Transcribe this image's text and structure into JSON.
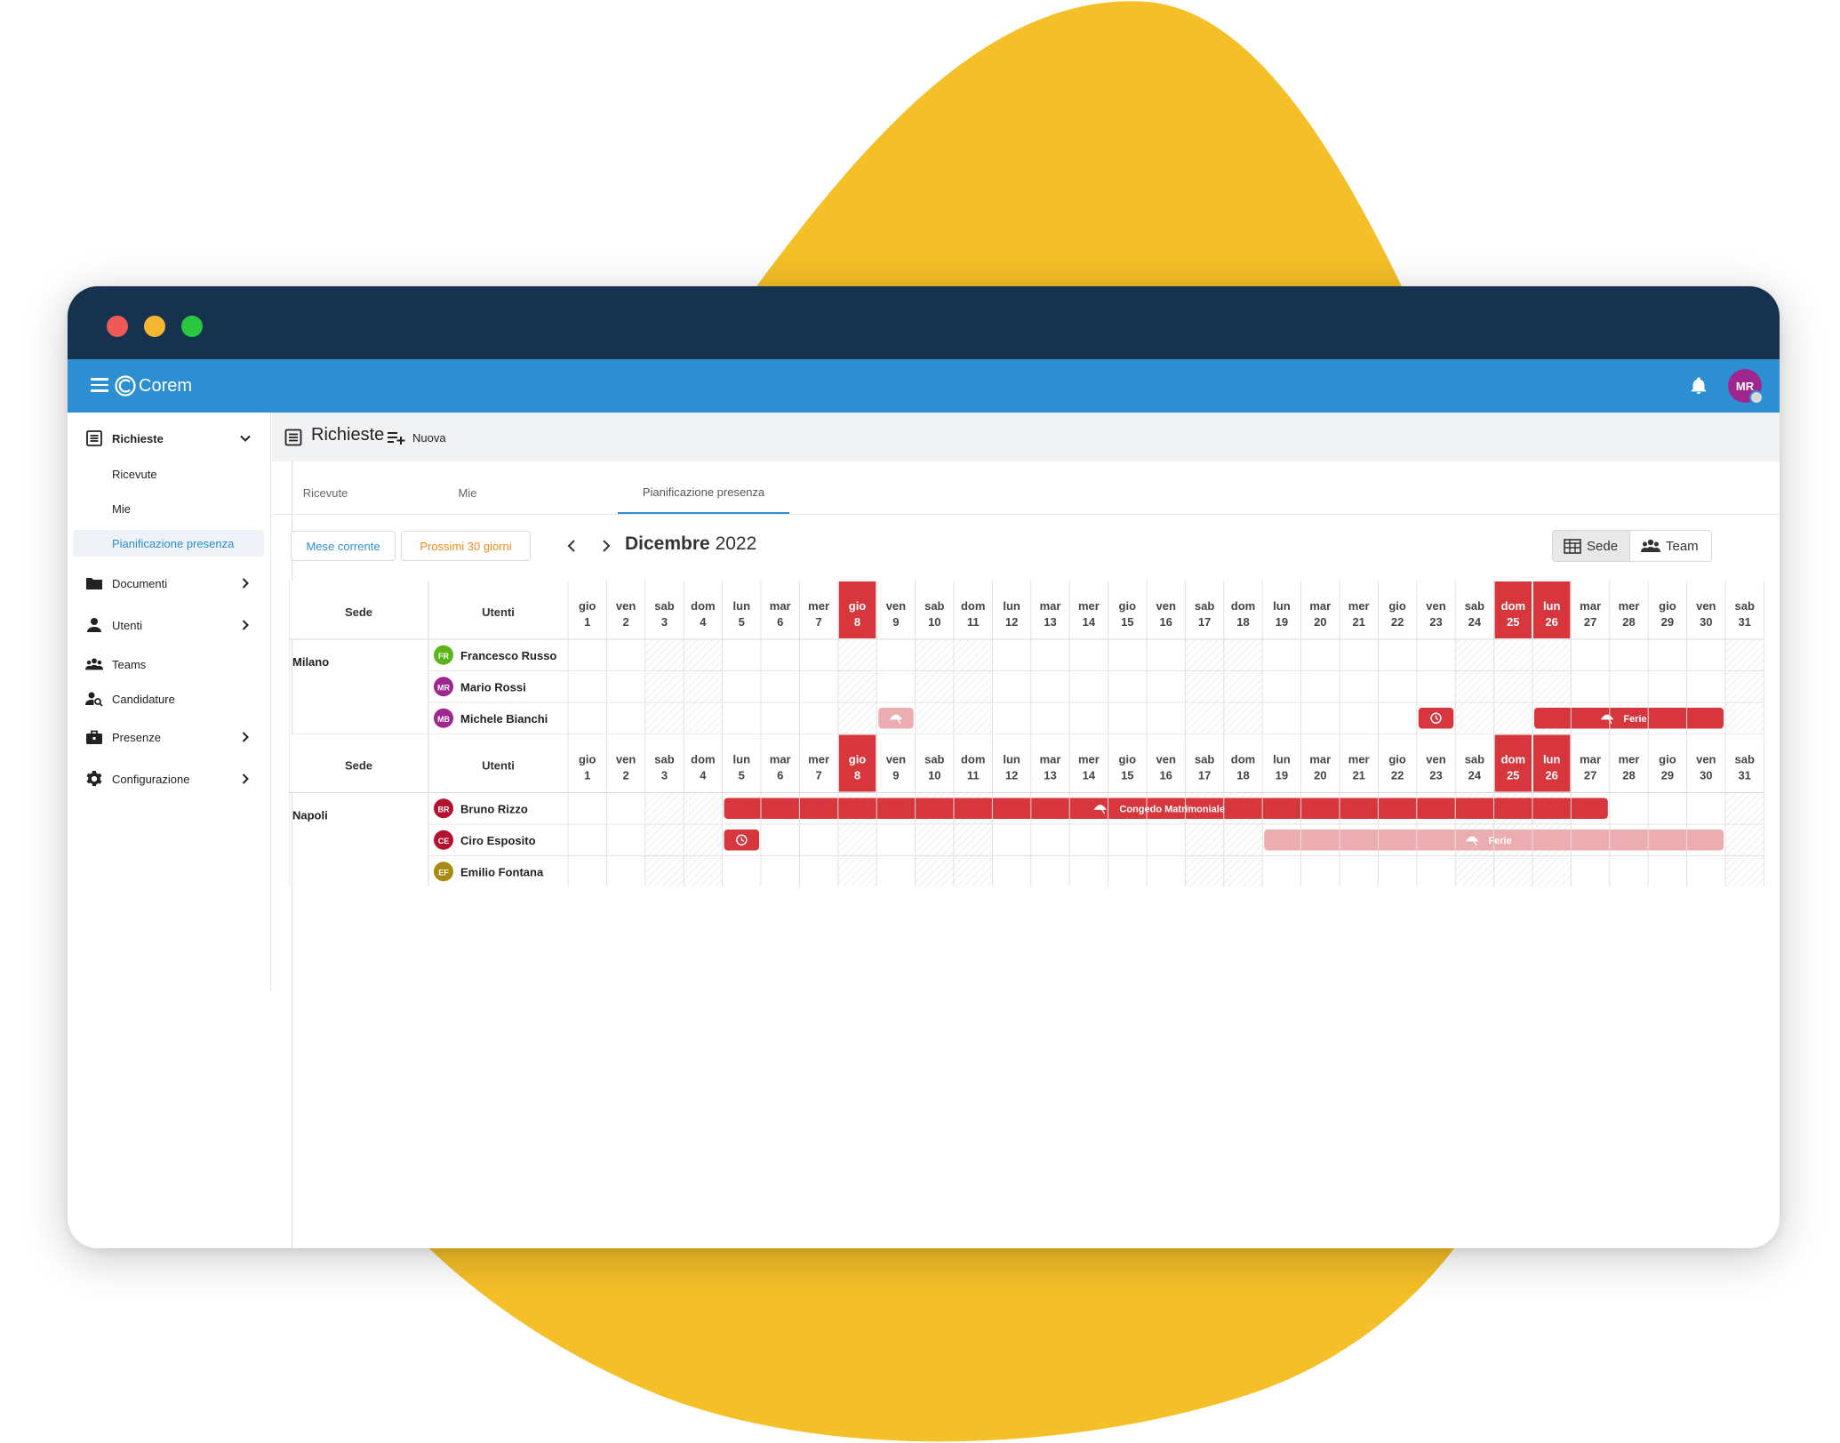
{
  "app": {
    "brand": "Corem",
    "user_initials": "MR"
  },
  "colors": {
    "brand_blue": "#2b8fd2",
    "titlebar": "#17324e",
    "accent_yellow": "#f4bf27",
    "event_red": "#d6363c",
    "event_pending": "#ebadb0"
  },
  "sidebar": {
    "items": [
      {
        "label": "Richieste",
        "icon": "list-icon",
        "expanded": true
      },
      {
        "label": "Documenti",
        "icon": "folder-icon"
      },
      {
        "label": "Utenti",
        "icon": "person-icon"
      },
      {
        "label": "Teams",
        "icon": "group-icon"
      },
      {
        "label": "Candidature",
        "icon": "person-search-icon"
      },
      {
        "label": "Presenze",
        "icon": "briefcase-icon"
      },
      {
        "label": "Configurazione",
        "icon": "gear-icon"
      }
    ],
    "subitems": [
      "Ricevute",
      "Mie",
      "Pianificazione presenza"
    ]
  },
  "page": {
    "title": "Richieste",
    "new_label": "Nuova"
  },
  "tabs": [
    "Ricevute",
    "Mie",
    "Pianificazione presenza"
  ],
  "toolbar": {
    "current_month": "Mese corrente",
    "next_30": "Prossimi 30 giorni",
    "month_name": "Dicembre",
    "year": "2022",
    "view_sede": "Sede",
    "view_team": "Team"
  },
  "calendar": {
    "header_sede": "Sede",
    "header_users": "Utenti",
    "days": [
      {
        "d": "gio",
        "n": "1"
      },
      {
        "d": "ven",
        "n": "2"
      },
      {
        "d": "sab",
        "n": "3",
        "we": true
      },
      {
        "d": "dom",
        "n": "4",
        "we": true
      },
      {
        "d": "lun",
        "n": "5"
      },
      {
        "d": "mar",
        "n": "6"
      },
      {
        "d": "mer",
        "n": "7"
      },
      {
        "d": "gio",
        "n": "8",
        "hol": true
      },
      {
        "d": "ven",
        "n": "9"
      },
      {
        "d": "sab",
        "n": "10",
        "we": true
      },
      {
        "d": "dom",
        "n": "11",
        "we": true
      },
      {
        "d": "lun",
        "n": "12"
      },
      {
        "d": "mar",
        "n": "13"
      },
      {
        "d": "mer",
        "n": "14"
      },
      {
        "d": "gio",
        "n": "15"
      },
      {
        "d": "ven",
        "n": "16"
      },
      {
        "d": "sab",
        "n": "17",
        "we": true
      },
      {
        "d": "dom",
        "n": "18",
        "we": true
      },
      {
        "d": "lun",
        "n": "19"
      },
      {
        "d": "mar",
        "n": "20"
      },
      {
        "d": "mer",
        "n": "21"
      },
      {
        "d": "gio",
        "n": "22"
      },
      {
        "d": "ven",
        "n": "23"
      },
      {
        "d": "sab",
        "n": "24",
        "we": true
      },
      {
        "d": "dom",
        "n": "25",
        "we": true,
        "hol": true
      },
      {
        "d": "lun",
        "n": "26",
        "hol": true
      },
      {
        "d": "mar",
        "n": "27"
      },
      {
        "d": "mer",
        "n": "28"
      },
      {
        "d": "gio",
        "n": "29"
      },
      {
        "d": "ven",
        "n": "30"
      },
      {
        "d": "sab",
        "n": "31",
        "we": true
      }
    ],
    "groups": [
      {
        "sede": "Milano",
        "users": [
          {
            "name": "Francesco Russo",
            "initials": "FR",
            "color": "#5bb517",
            "events": []
          },
          {
            "name": "Mario Rossi",
            "initials": "MR",
            "color": "#a0268f",
            "events": []
          },
          {
            "name": "Michele Bianchi",
            "initials": "MB",
            "color": "#a0268f",
            "events": [
              {
                "start": 9,
                "end": 9,
                "label": "",
                "icon": "beach-icon",
                "pending": true
              },
              {
                "start": 23,
                "end": 23,
                "label": "",
                "icon": "clock-icon",
                "pending": false
              },
              {
                "start": 26,
                "end": 30,
                "label": "Ferie",
                "icon": "beach-icon",
                "pending": false
              }
            ]
          }
        ]
      },
      {
        "sede": "Napoli",
        "users": [
          {
            "name": "Bruno Rizzo",
            "initials": "BR",
            "color": "#b5122f",
            "events": [
              {
                "start": 5,
                "end": 27,
                "label": "Congedo Matrimoniale",
                "icon": "beach-icon",
                "pending": false
              }
            ]
          },
          {
            "name": "Ciro Esposito",
            "initials": "CE",
            "color": "#b5122f",
            "events": [
              {
                "start": 5,
                "end": 5,
                "label": "",
                "icon": "clock-icon",
                "pending": false
              },
              {
                "start": 19,
                "end": 30,
                "label": "Ferie",
                "icon": "beach-icon",
                "pending": true
              }
            ]
          },
          {
            "name": "Emilio Fontana",
            "initials": "EF",
            "color": "#a88a12",
            "events": []
          }
        ]
      }
    ]
  }
}
